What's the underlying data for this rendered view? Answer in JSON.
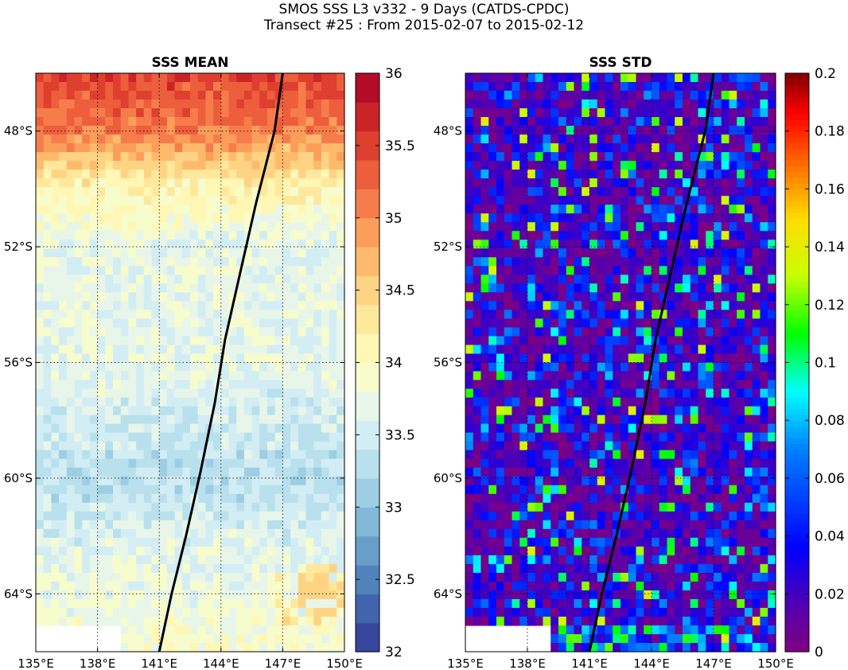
{
  "header": {
    "title_line1": "SMOS SSS L3 v332 - 9 Days (CATDS-CPDC)",
    "title_line2": "Transect #25 : From 2015-02-07 to 2015-02-12"
  },
  "chart_data": [
    {
      "type": "heatmap",
      "title": "SSS MEAN",
      "x_range": [
        135,
        150
      ],
      "y_range": [
        -66,
        -46
      ],
      "x_ticks": [
        135,
        138,
        141,
        144,
        147,
        150
      ],
      "x_tick_labels": [
        "135°E",
        "138°E",
        "141°E",
        "144°E",
        "147°E",
        "150°E"
      ],
      "y_ticks": [
        -48,
        -52,
        -56,
        -60,
        -64
      ],
      "y_tick_labels": [
        "48°S",
        "52°S",
        "56°S",
        "60°S",
        "64°S"
      ],
      "grid": true,
      "colorbar": {
        "range": [
          32,
          36
        ],
        "ticks": [
          32,
          32.5,
          33,
          33.5,
          34,
          34.5,
          35,
          35.5,
          36
        ],
        "tick_labels": [
          "32",
          "32.5",
          "33",
          "33.5",
          "34",
          "34.5",
          "35",
          "35.5",
          "36"
        ],
        "colormap": "RdYlBu_r",
        "levels": 20
      },
      "latitude_profile": [
        {
          "lat": -46,
          "value": 35.5
        },
        {
          "lat": -48,
          "value": 35.1
        },
        {
          "lat": -50,
          "value": 34.1
        },
        {
          "lat": -52,
          "value": 33.7
        },
        {
          "lat": -56,
          "value": 33.7
        },
        {
          "lat": -60,
          "value": 33.3
        },
        {
          "lat": -62,
          "value": 33.6
        },
        {
          "lat": -66,
          "value": 33.9
        }
      ],
      "missing_region": {
        "lon": [
          135,
          139
        ],
        "lat": [
          -66,
          -65.2
        ]
      },
      "transect": [
        [
          147.0,
          -46.0
        ],
        [
          146.6,
          -48.0
        ],
        [
          145.7,
          -50.5
        ],
        [
          144.9,
          -53.0
        ],
        [
          144.2,
          -55.2
        ],
        [
          143.7,
          -57.4
        ],
        [
          143.0,
          -59.8
        ],
        [
          142.3,
          -62.0
        ],
        [
          141.6,
          -64.0
        ],
        [
          141.0,
          -66.0
        ]
      ]
    },
    {
      "type": "heatmap",
      "title": "SSS STD",
      "x_range": [
        135,
        150
      ],
      "y_range": [
        -66,
        -46
      ],
      "x_ticks": [
        135,
        138,
        141,
        144,
        147,
        150
      ],
      "x_tick_labels": [
        "135°E",
        "138°E",
        "141°E",
        "144°E",
        "147°E",
        "150°E"
      ],
      "y_ticks": [
        -48,
        -52,
        -56,
        -60,
        -64
      ],
      "y_tick_labels": [
        "48°S",
        "52°S",
        "56°S",
        "60°S",
        "64°S"
      ],
      "grid": true,
      "colorbar": {
        "range": [
          0,
          0.2
        ],
        "ticks": [
          0,
          0.02,
          0.04,
          0.06,
          0.08,
          0.1,
          0.12,
          0.14,
          0.16,
          0.18,
          0.2
        ],
        "tick_labels": [
          "0",
          "0.02",
          "0.04",
          "0.06",
          "0.08",
          "0.1",
          "0.12",
          "0.14",
          "0.16",
          "0.18",
          "0.2"
        ],
        "colormap": "jet_purple",
        "levels": 100
      },
      "typical_range": [
        0.0,
        0.14
      ],
      "missing_region": {
        "lon": [
          135,
          139
        ],
        "lat": [
          -66,
          -65.2
        ]
      },
      "transect": [
        [
          147.0,
          -46.0
        ],
        [
          146.6,
          -48.0
        ],
        [
          145.7,
          -50.5
        ],
        [
          144.9,
          -53.0
        ],
        [
          144.2,
          -55.2
        ],
        [
          143.7,
          -57.4
        ],
        [
          143.0,
          -59.8
        ],
        [
          142.3,
          -62.0
        ],
        [
          141.6,
          -64.0
        ],
        [
          141.0,
          -66.0
        ]
      ]
    }
  ],
  "colors": {
    "transect_line": "#000000",
    "grid_line": "#000000",
    "missing": "#ffffff"
  }
}
